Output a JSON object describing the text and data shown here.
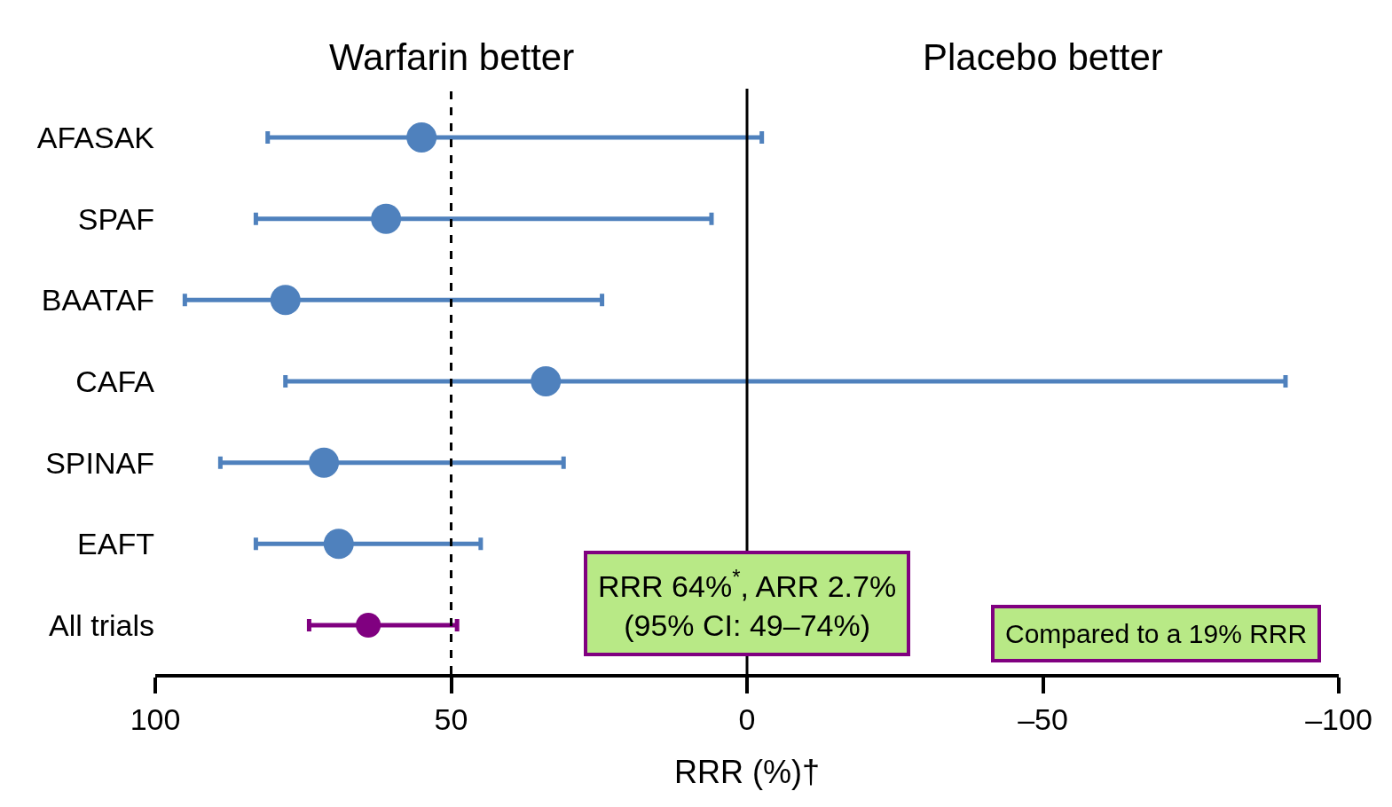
{
  "chart_data": {
    "type": "scatter",
    "orientation": "horizontal",
    "categories": [
      "AFASAK",
      "SPAF",
      "BAATAF",
      "CAFA",
      "SPINAF",
      "EAFT",
      "All trials"
    ],
    "values": [
      55,
      61,
      78,
      34,
      71.5,
      69,
      64
    ],
    "errors": [
      [
        -2.5,
        81
      ],
      [
        6,
        83
      ],
      [
        24.5,
        95
      ],
      [
        -91,
        78
      ],
      [
        31,
        89
      ],
      [
        45,
        83
      ],
      [
        49,
        74
      ]
    ],
    "colors": [
      "#4f81bd",
      "#4f81bd",
      "#4f81bd",
      "#4f81bd",
      "#4f81bd",
      "#4f81bd",
      "#800080"
    ],
    "marker": "circle",
    "xlabel": "RRR (%)†",
    "xlim": [
      100,
      -100
    ],
    "xticks": [
      100,
      50,
      0,
      {
        "value": -50,
        "label": "–50"
      },
      {
        "value": -100,
        "label": "–100"
      }
    ],
    "ref_lines": [
      {
        "axis": "x",
        "value": 50,
        "color": "#000000",
        "line_style": "dashed"
      },
      {
        "axis": "x",
        "value": 0,
        "color": "#000000",
        "line_style": "solid"
      }
    ],
    "annotations": [
      "Warfarin better",
      "Placebo better",
      "RRR 64%$^{*}$, ARR 2.7%\n(95% CI: 49–74%)",
      "Compared to a 19% RRR"
    ]
  }
}
